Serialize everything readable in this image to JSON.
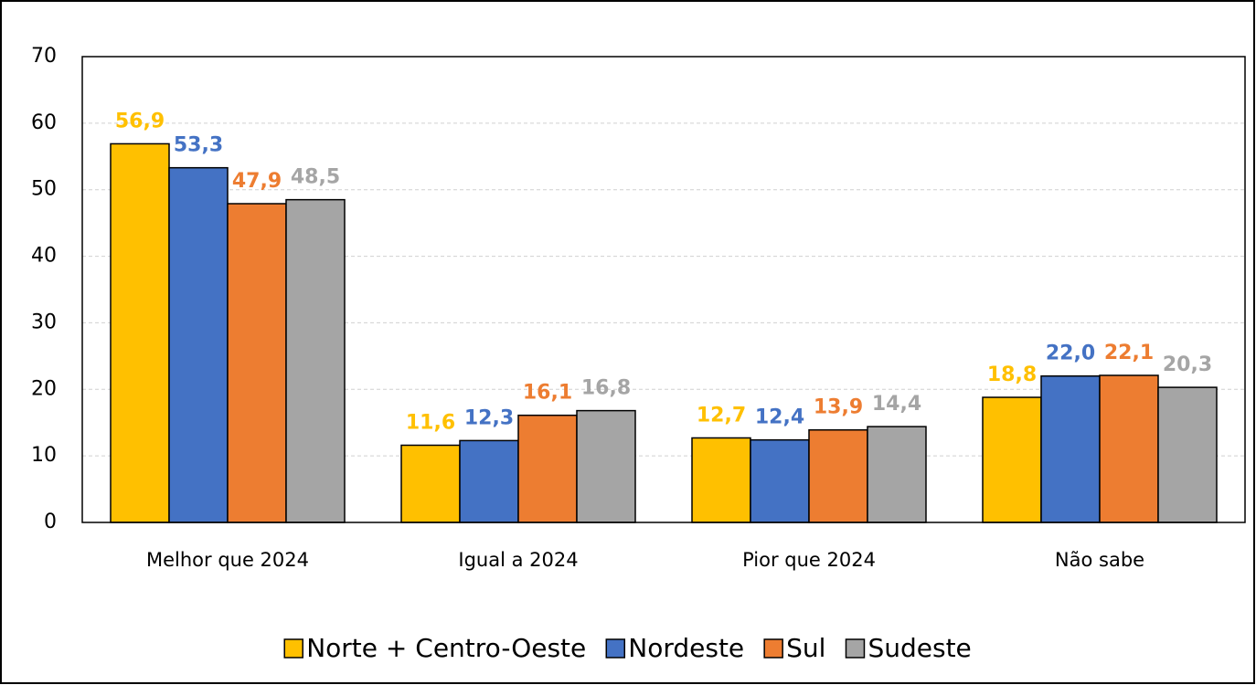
{
  "chart_data": {
    "type": "bar",
    "categories": [
      "Melhor que 2024",
      "Igual a 2024",
      "Pior que 2024",
      "Não sabe"
    ],
    "series": [
      {
        "name": "Norte + Centro-Oeste",
        "color": "#FFC000",
        "values": [
          56.9,
          11.6,
          12.7,
          18.8
        ],
        "value_labels": [
          "56,9",
          "11,6",
          "12,7",
          "18,8"
        ]
      },
      {
        "name": "Nordeste",
        "color": "#4472C4",
        "values": [
          53.3,
          12.3,
          12.4,
          22.0
        ],
        "value_labels": [
          "53,3",
          "12,3",
          "12,4",
          "22,0"
        ]
      },
      {
        "name": "Sul",
        "color": "#ED7D31",
        "values": [
          47.9,
          16.1,
          13.9,
          22.1
        ],
        "value_labels": [
          "47,9",
          "16,1",
          "13,9",
          "22,1"
        ]
      },
      {
        "name": "Sudeste",
        "color": "#A5A5A5",
        "values": [
          48.5,
          16.8,
          14.4,
          20.3
        ],
        "value_labels": [
          "48,5",
          "16,8",
          "14,4",
          "20,3"
        ]
      }
    ],
    "ylim": [
      0,
      70
    ],
    "yticks": [
      0,
      10,
      20,
      30,
      40,
      50,
      60,
      70
    ],
    "grid": true,
    "legend": "bottom"
  }
}
